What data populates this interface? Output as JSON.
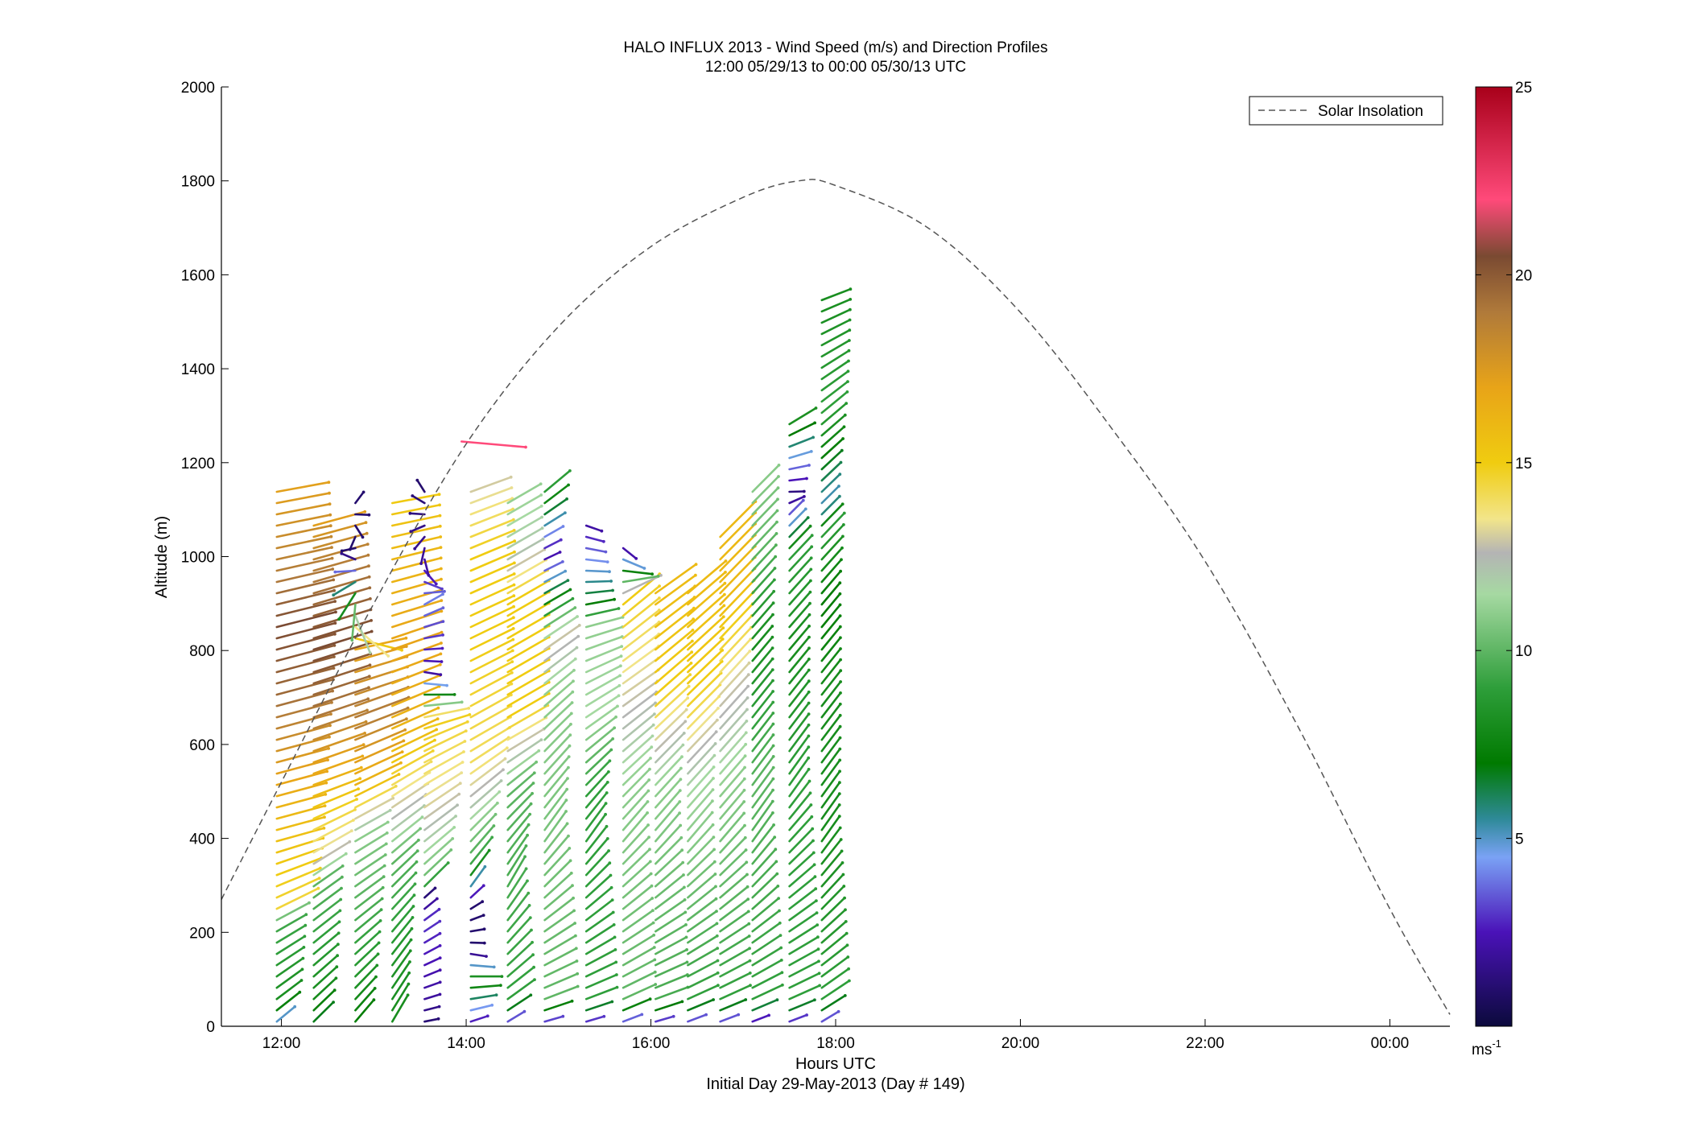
{
  "chart_data": {
    "type": "vector field (wind barbs) with line overlay",
    "title": "HALO INFLUX 2013 - Wind Speed (m/s) and Direction Profiles",
    "subtitle": "12:00 05/29/13 to 00:00 05/30/13  UTC",
    "xlabel": "Hours UTC",
    "xlabel2": "Initial Day 29-May-2013 (Day # 149)",
    "ylabel": "Altitude (m)",
    "xlim": [
      11.35,
      24.65
    ],
    "ylim": [
      0,
      2000
    ],
    "x_ticks": [
      {
        "value": 12,
        "label": "12:00"
      },
      {
        "value": 14,
        "label": "14:00"
      },
      {
        "value": 16,
        "label": "16:00"
      },
      {
        "value": 18,
        "label": "18:00"
      },
      {
        "value": 20,
        "label": "20:00"
      },
      {
        "value": 22,
        "label": "22:00"
      },
      {
        "value": 24,
        "label": "00:00"
      }
    ],
    "y_ticks": [
      {
        "value": 0,
        "label": "0"
      },
      {
        "value": 200,
        "label": "200"
      },
      {
        "value": 400,
        "label": "400"
      },
      {
        "value": 600,
        "label": "600"
      },
      {
        "value": 800,
        "label": "800"
      },
      {
        "value": 1000,
        "label": "1000"
      },
      {
        "value": 1200,
        "label": "1200"
      },
      {
        "value": 1400,
        "label": "1400"
      },
      {
        "value": 1600,
        "label": "1600"
      },
      {
        "value": 1800,
        "label": "1800"
      },
      {
        "value": 2000,
        "label": "2000"
      }
    ],
    "grid": false,
    "legend": {
      "position": "top-right",
      "entries": [
        {
          "label": "Solar Insolation",
          "style": "dashed",
          "color": "#555555"
        }
      ]
    },
    "solar_insolation": {
      "description_units": "scaled to altitude axis",
      "x": [
        11.35,
        12.0,
        13.0,
        14.0,
        15.0,
        16.0,
        17.0,
        17.6,
        18.0,
        19.0,
        20.0,
        21.0,
        22.0,
        23.0,
        24.0,
        24.65
      ],
      "y": [
        270,
        520,
        900,
        1240,
        1490,
        1660,
        1765,
        1800,
        1790,
        1700,
        1520,
        1270,
        990,
        640,
        250,
        25
      ]
    },
    "colorbar": {
      "label": "ms-1",
      "range": [
        0,
        25
      ],
      "ticks": [
        5,
        10,
        15,
        20,
        25
      ],
      "stops": [
        {
          "value": 0,
          "color": "#0b0a3c"
        },
        {
          "value": 2.5,
          "color": "#4a12b8"
        },
        {
          "value": 4.5,
          "color": "#7aa2f5"
        },
        {
          "value": 5.5,
          "color": "#2f8a9a"
        },
        {
          "value": 7,
          "color": "#007a00"
        },
        {
          "value": 9,
          "color": "#2e9e3a"
        },
        {
          "value": 11.5,
          "color": "#a6d9a2"
        },
        {
          "value": 12.6,
          "color": "#b4b4b4"
        },
        {
          "value": 13.5,
          "color": "#f2e58a"
        },
        {
          "value": 15,
          "color": "#f0cc10"
        },
        {
          "value": 17,
          "color": "#e8a418"
        },
        {
          "value": 19,
          "color": "#b07a3a"
        },
        {
          "value": 20.5,
          "color": "#7a4a32"
        },
        {
          "value": 22,
          "color": "#ff4a7a"
        },
        {
          "value": 25,
          "color": "#a8001a"
        }
      ]
    },
    "wind_profiles": [
      {
        "time": 11.95,
        "hi": 1160,
        "sp": [
          [
            0,
            4
          ],
          [
            40,
            8
          ],
          [
            220,
            9.5
          ],
          [
            250,
            14.5
          ],
          [
            450,
            16
          ],
          [
            600,
            18
          ],
          [
            700,
            19.5
          ],
          [
            850,
            20.5
          ],
          [
            950,
            19
          ],
          [
            1160,
            17
          ]
        ],
        "dir": [
          [
            0,
            50
          ],
          [
            200,
            60
          ],
          [
            400,
            75
          ],
          [
            800,
            75
          ],
          [
            1160,
            80
          ]
        ]
      },
      {
        "time": 12.35,
        "hi": 1080,
        "sp": [
          [
            0,
            6.5
          ],
          [
            60,
            8
          ],
          [
            300,
            10
          ],
          [
            350,
            13
          ],
          [
            500,
            16
          ],
          [
            650,
            19
          ],
          [
            800,
            20.5
          ],
          [
            1000,
            18.5
          ],
          [
            1080,
            17
          ]
        ],
        "dir": [
          [
            0,
            45
          ],
          [
            300,
            55
          ],
          [
            500,
            70
          ],
          [
            1080,
            75
          ]
        ]
      },
      {
        "time": 12.8,
        "hi": 1130,
        "sp": [
          [
            0,
            7
          ],
          [
            100,
            8.5
          ],
          [
            400,
            11
          ],
          [
            500,
            16
          ],
          [
            650,
            19
          ],
          [
            800,
            17
          ],
          [
            900,
            10
          ],
          [
            1000,
            1
          ],
          [
            1130,
            1
          ]
        ],
        "dir": [
          [
            0,
            40
          ],
          [
            400,
            60
          ],
          [
            800,
            75
          ],
          [
            1000,
            300
          ],
          [
            1130,
            0
          ]
        ]
      },
      {
        "time": 13.2,
        "hi": 1130,
        "sp": [
          [
            0,
            8
          ],
          [
            150,
            8.5
          ],
          [
            350,
            10
          ],
          [
            420,
            12
          ],
          [
            600,
            16
          ],
          [
            800,
            17
          ],
          [
            1000,
            16
          ],
          [
            1130,
            15
          ]
        ],
        "dir": [
          [
            0,
            30
          ],
          [
            300,
            45
          ],
          [
            600,
            65
          ],
          [
            1130,
            80
          ]
        ]
      },
      {
        "time": 13.55,
        "hi": 1140,
        "sp": [
          [
            0,
            1
          ],
          [
            60,
            2
          ],
          [
            220,
            3
          ],
          [
            280,
            1
          ],
          [
            300,
            10
          ],
          [
            450,
            13
          ],
          [
            650,
            15
          ],
          [
            750,
            2
          ],
          [
            900,
            4
          ],
          [
            1000,
            2
          ],
          [
            1140,
            1
          ]
        ],
        "dir": [
          [
            0,
            80
          ],
          [
            300,
            45
          ],
          [
            600,
            65
          ],
          [
            750,
            100
          ],
          [
            900,
            60
          ],
          [
            1140,
            330
          ]
        ]
      },
      {
        "time": 14.05,
        "hi": 1140,
        "sp": [
          [
            0,
            2
          ],
          [
            100,
            9
          ],
          [
            160,
            1
          ],
          [
            260,
            1
          ],
          [
            330,
            9
          ],
          [
            550,
            14
          ],
          [
            800,
            15
          ],
          [
            1000,
            15
          ],
          [
            1140,
            13
          ]
        ],
        "dir": [
          [
            0,
            70
          ],
          [
            160,
            100
          ],
          [
            300,
            35
          ],
          [
            600,
            60
          ],
          [
            1140,
            70
          ]
        ]
      },
      {
        "time": 14.45,
        "hi": 1130,
        "sp": [
          [
            0,
            2
          ],
          [
            50,
            9
          ],
          [
            500,
            10
          ],
          [
            650,
            15
          ],
          [
            900,
            15
          ],
          [
            1000,
            12
          ],
          [
            1130,
            11
          ]
        ],
        "dir": [
          [
            0,
            60
          ],
          [
            300,
            30
          ],
          [
            600,
            60
          ],
          [
            1130,
            60
          ]
        ]
      },
      {
        "time": 14.85,
        "hi": 1140,
        "sp": [
          [
            0,
            1.5
          ],
          [
            50,
            10
          ],
          [
            700,
            11
          ],
          [
            800,
            13
          ],
          [
            1000,
            2
          ],
          [
            1140,
            9
          ]
        ],
        "dir": [
          [
            0,
            75
          ],
          [
            400,
            35
          ],
          [
            800,
            55
          ],
          [
            1000,
            65
          ],
          [
            1140,
            50
          ]
        ]
      },
      {
        "time": 15.3,
        "hi": 1070,
        "sp": [
          [
            0,
            1.5
          ],
          [
            50,
            9
          ],
          [
            500,
            9
          ],
          [
            650,
            11.5
          ],
          [
            850,
            11
          ],
          [
            900,
            7
          ],
          [
            1070,
            2
          ]
        ],
        "dir": [
          [
            0,
            75
          ],
          [
            400,
            35
          ],
          [
            700,
            60
          ],
          [
            900,
            80
          ],
          [
            1070,
            110
          ]
        ]
      },
      {
        "time": 15.7,
        "hi": 1020,
        "sp": [
          [
            0,
            2
          ],
          [
            50,
            10
          ],
          [
            500,
            11
          ],
          [
            700,
            13
          ],
          [
            900,
            15
          ],
          [
            1020,
            2
          ]
        ],
        "dir": [
          [
            0,
            70
          ],
          [
            400,
            40
          ],
          [
            700,
            55
          ],
          [
            900,
            50
          ],
          [
            1020,
            130
          ]
        ]
      },
      {
        "time": 16.05,
        "hi": 940,
        "sp": [
          [
            0,
            1.5
          ],
          [
            50,
            9.5
          ],
          [
            500,
            11
          ],
          [
            700,
            15
          ],
          [
            940,
            16
          ]
        ],
        "dir": [
          [
            0,
            75
          ],
          [
            400,
            40
          ],
          [
            940,
            55
          ]
        ]
      },
      {
        "time": 16.4,
        "hi": 940,
        "sp": [
          [
            0,
            2
          ],
          [
            50,
            9
          ],
          [
            500,
            11.5
          ],
          [
            700,
            15
          ],
          [
            940,
            16
          ]
        ],
        "dir": [
          [
            0,
            70
          ],
          [
            400,
            40
          ],
          [
            940,
            50
          ]
        ]
      },
      {
        "time": 16.75,
        "hi": 1050,
        "sp": [
          [
            0,
            2
          ],
          [
            50,
            9
          ],
          [
            500,
            11
          ],
          [
            700,
            13
          ],
          [
            900,
            16
          ],
          [
            1050,
            16
          ]
        ],
        "dir": [
          [
            0,
            70
          ],
          [
            400,
            40
          ],
          [
            1050,
            45
          ]
        ]
      },
      {
        "time": 17.1,
        "hi": 1160,
        "sp": [
          [
            0,
            1
          ],
          [
            50,
            9
          ],
          [
            500,
            10
          ],
          [
            800,
            8
          ],
          [
            1000,
            10
          ],
          [
            1160,
            11
          ]
        ],
        "dir": [
          [
            0,
            70
          ],
          [
            400,
            35
          ],
          [
            1160,
            45
          ]
        ]
      },
      {
        "time": 17.5,
        "hi": 1300,
        "sp": [
          [
            0,
            1.5
          ],
          [
            50,
            9
          ],
          [
            500,
            9
          ],
          [
            800,
            8
          ],
          [
            1000,
            9
          ],
          [
            1130,
            1
          ],
          [
            1300,
            9
          ]
        ],
        "dir": [
          [
            0,
            70
          ],
          [
            500,
            35
          ],
          [
            1100,
            45
          ],
          [
            1130,
            90
          ],
          [
            1300,
            55
          ]
        ]
      },
      {
        "time": 17.85,
        "hi": 1560,
        "sp": [
          [
            0,
            2
          ],
          [
            50,
            9
          ],
          [
            400,
            8
          ],
          [
            700,
            8
          ],
          [
            900,
            7
          ],
          [
            1050,
            9
          ],
          [
            1100,
            5
          ],
          [
            1300,
            9
          ],
          [
            1560,
            8
          ]
        ],
        "dir": [
          [
            0,
            60
          ],
          [
            400,
            35
          ],
          [
            900,
            40
          ],
          [
            1300,
            50
          ],
          [
            1560,
            70
          ]
        ]
      }
    ],
    "annotations": [
      {
        "type": "isolated barb",
        "time": 13.95,
        "altitude": 1245,
        "speed": 22,
        "direction_deg": 95
      }
    ]
  }
}
